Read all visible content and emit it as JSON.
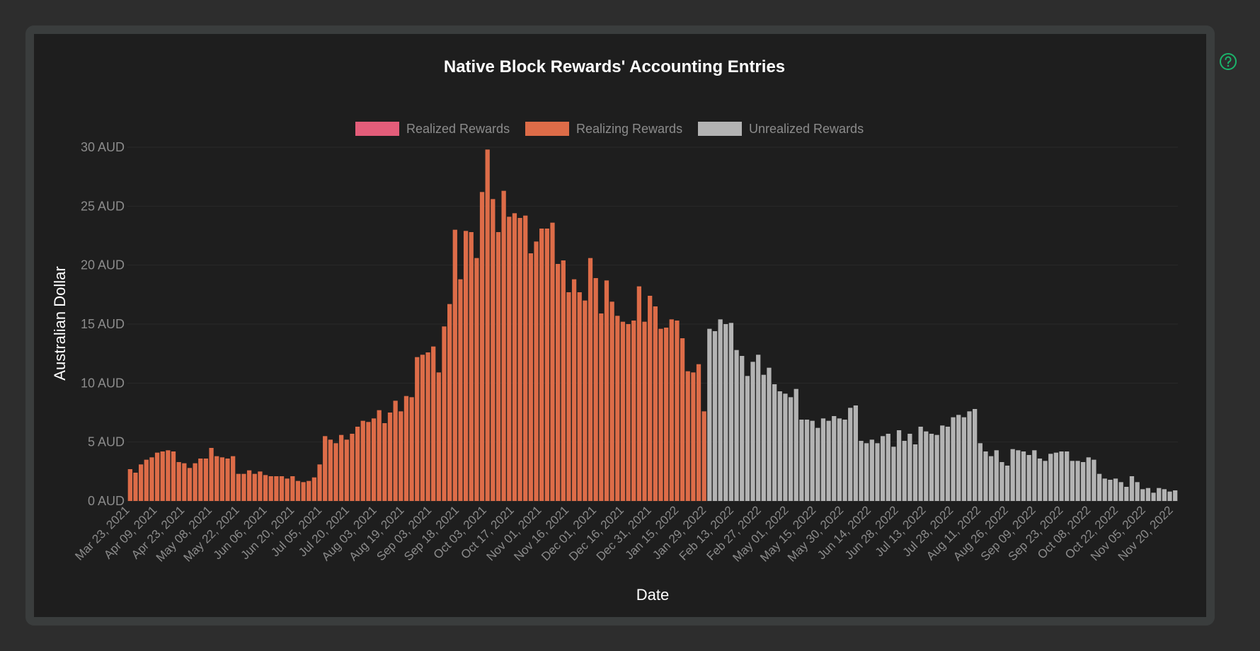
{
  "help": {
    "icon": "help-circle-icon"
  },
  "colors": {
    "realized": "#e35d7a",
    "realizing": "#dd6c48",
    "unrealized": "#b3b3b3",
    "grid": "#2a2a2a",
    "axis_text": "#8c8c8c",
    "title": "#ffffff",
    "help_icon": "#1bb46b"
  },
  "chart_data": {
    "type": "bar",
    "title": "Native Block Rewards' Accounting Entries",
    "xlabel": "Date",
    "ylabel": "Australian Dollar",
    "ylim": [
      0,
      30
    ],
    "y_ticks": [
      "0 AUD",
      "5 AUD",
      "10 AUD",
      "15 AUD",
      "20 AUD",
      "25 AUD",
      "30 AUD"
    ],
    "x_ticks": [
      "Mar 23, 2021",
      "Apr 09, 2021",
      "Apr 23, 2021",
      "May 08, 2021",
      "May 22, 2021",
      "Jun 06, 2021",
      "Jun 20, 2021",
      "Jul 05, 2021",
      "Jul 20, 2021",
      "Aug 03, 2021",
      "Aug 19, 2021",
      "Sep 03, 2021",
      "Sep 18, 2021",
      "Oct 03, 2021",
      "Oct 17, 2021",
      "Nov 01, 2021",
      "Nov 16, 2021",
      "Dec 01, 2021",
      "Dec 16, 2021",
      "Dec 31, 2021",
      "Jan 15, 2022",
      "Jan 29, 2022",
      "Feb 13, 2022",
      "Feb 27, 2022",
      "May 01, 2022",
      "May 15, 2022",
      "May 30, 2022",
      "Jun 14, 2022",
      "Jun 28, 2022",
      "Jul 13, 2022",
      "Jul 28, 2022",
      "Aug 11, 2022",
      "Aug 26, 2022",
      "Sep 09, 2022",
      "Sep 23, 2022",
      "Oct 08, 2022",
      "Oct 22, 2022",
      "Nov 05, 2022",
      "Nov 20, 2022"
    ],
    "legend": [
      "Realized Rewards",
      "Realizing Rewards",
      "Unrealized Rewards"
    ],
    "legend_position": "top",
    "grid": true,
    "series": [
      {
        "name": "Realizing Rewards",
        "values": [
          2.7,
          2.4,
          3.1,
          3.5,
          3.7,
          4.1,
          4.2,
          4.3,
          4.2,
          3.3,
          3.2,
          2.8,
          3.2,
          3.6,
          3.6,
          4.5,
          3.8,
          3.7,
          3.6,
          3.8,
          2.3,
          2.3,
          2.6,
          2.3,
          2.5,
          2.2,
          2.1,
          2.1,
          2.1,
          1.9,
          2.1,
          1.7,
          1.6,
          1.7,
          2.0,
          3.1,
          5.5,
          5.2,
          4.9,
          5.6,
          5.2,
          5.7,
          6.3,
          6.8,
          6.7,
          7.0,
          7.7,
          6.6,
          7.5,
          8.5,
          7.6,
          8.9,
          8.8,
          12.2,
          12.4,
          12.6,
          13.1,
          10.9,
          14.8,
          16.7,
          23.0,
          18.8,
          22.9,
          22.8,
          20.6,
          26.2,
          29.8,
          25.6,
          22.8,
          26.3,
          24.1,
          24.4,
          24.0,
          24.2,
          21.0,
          22.0,
          23.1,
          23.1,
          23.6,
          20.1,
          20.4,
          17.7,
          18.8,
          17.7,
          17.0,
          20.6,
          18.9,
          15.9,
          18.7,
          16.9,
          15.7,
          15.2,
          15.0,
          15.3,
          18.2,
          15.2,
          17.4,
          16.5,
          14.6,
          14.7,
          15.4,
          15.3,
          13.8,
          11.0,
          10.9,
          11.6,
          7.6
        ]
      },
      {
        "name": "Unrealized Rewards",
        "values": [
          14.6,
          14.4,
          15.4,
          15.0,
          15.1,
          12.8,
          12.3,
          10.6,
          11.8,
          12.4,
          10.7,
          11.3,
          9.9,
          9.3,
          9.1,
          8.8,
          9.5,
          6.9,
          6.9,
          6.8,
          6.2,
          7.0,
          6.8,
          7.2,
          7.0,
          6.9,
          7.9,
          8.1,
          5.1,
          4.9,
          5.2,
          4.9,
          5.5,
          5.7,
          4.6,
          6.0,
          5.1,
          5.7,
          4.8,
          6.3,
          5.9,
          5.7,
          5.6,
          6.4,
          6.3,
          7.1,
          7.3,
          7.1,
          7.6,
          7.8,
          4.9,
          4.2,
          3.8,
          4.3,
          3.3,
          3.0,
          4.4,
          4.3,
          4.2,
          3.9,
          4.3,
          3.6,
          3.4,
          4.0,
          4.1,
          4.2,
          4.2,
          3.4,
          3.4,
          3.3,
          3.7,
          3.5,
          2.3,
          1.9,
          1.8,
          1.9,
          1.6,
          1.2,
          2.1,
          1.6,
          1.0,
          1.1,
          0.7,
          1.1,
          1.0,
          0.8,
          0.9
        ]
      },
      {
        "name": "Realized Rewards",
        "values": []
      }
    ]
  }
}
